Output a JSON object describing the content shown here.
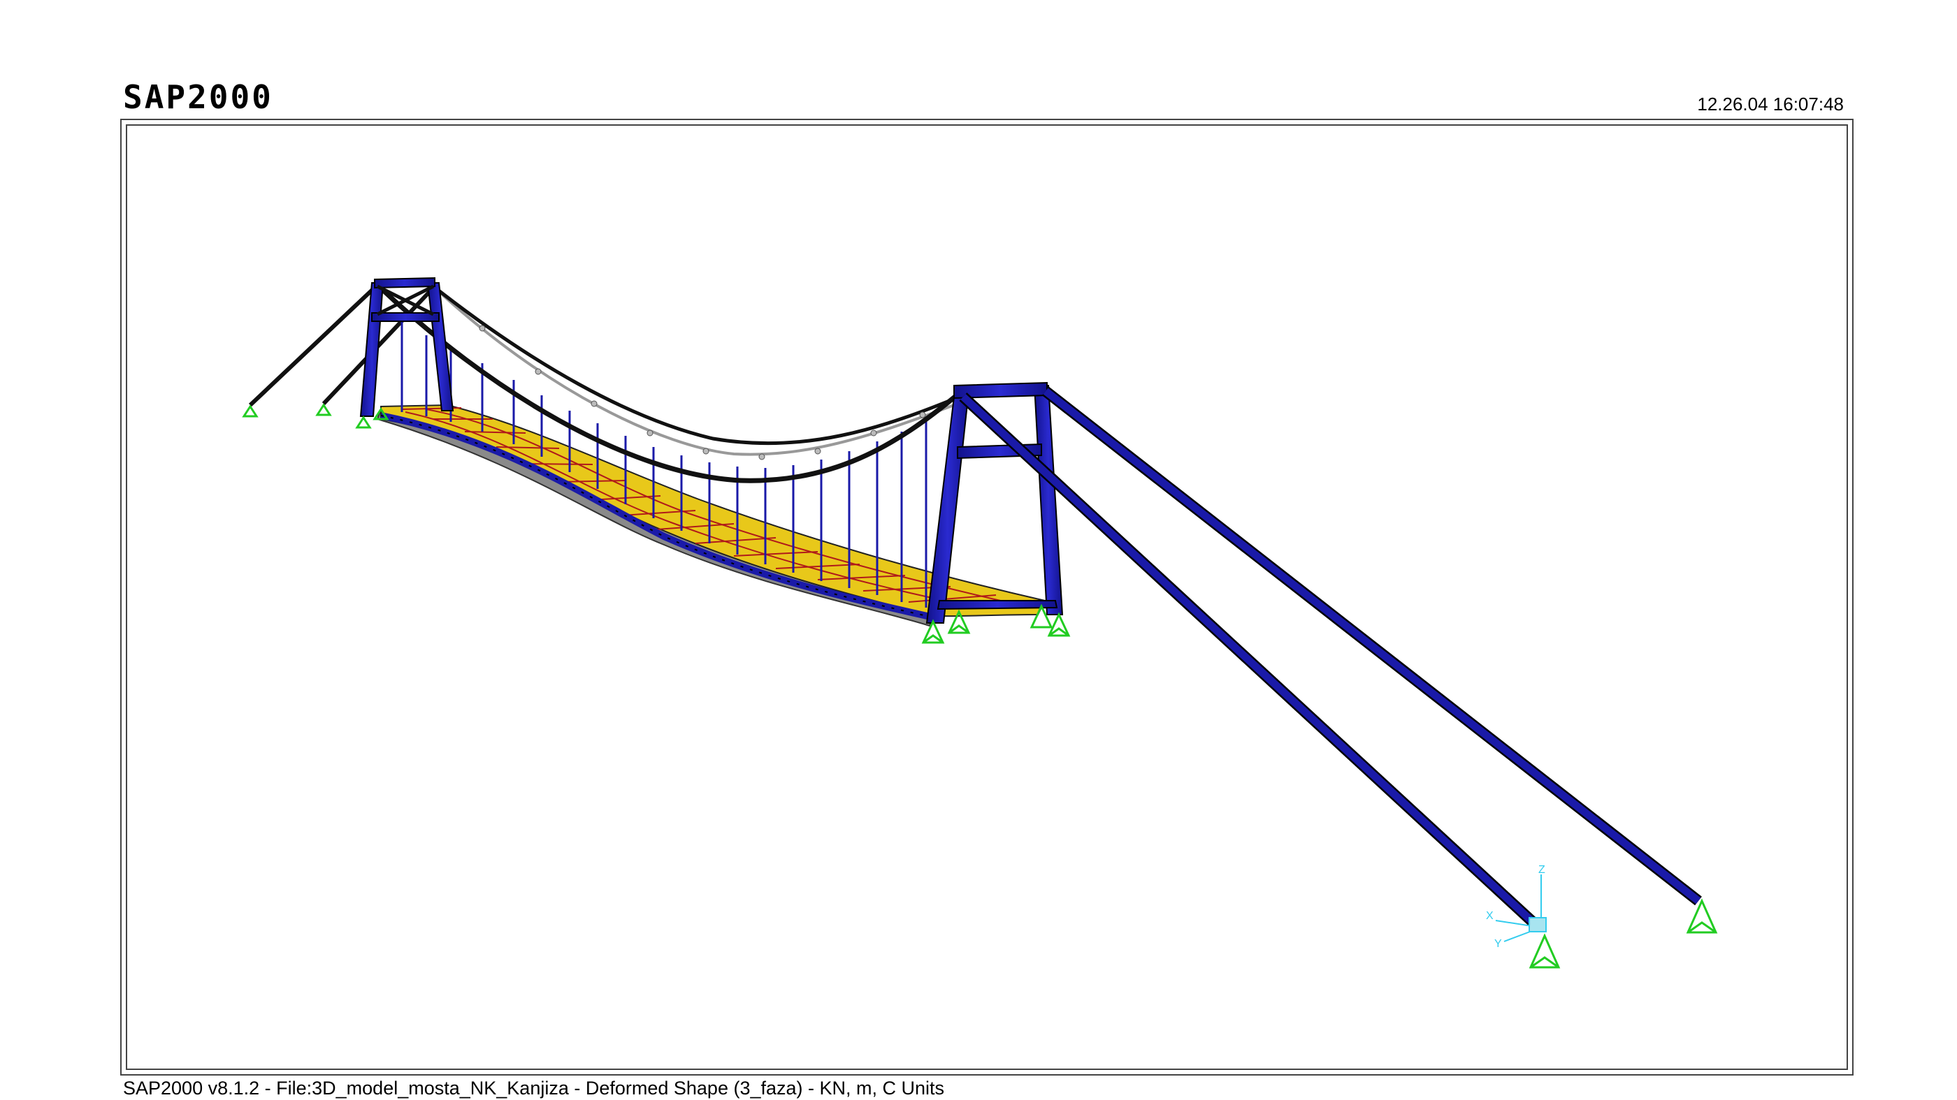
{
  "header": {
    "app_title": "SAP2000",
    "timestamp": "12.26.04 16:07:48"
  },
  "footer": {
    "status_line": "SAP2000 v8.1.2 - File:3D_model_mosta_NK_Kanjiza - Deformed Shape (3_faza) - KN, m, C Units"
  },
  "axes_triad": {
    "labels": [
      "Z",
      "X",
      "Y"
    ],
    "color": "#33ccee"
  },
  "colors": {
    "frame": "#1a1aa8",
    "frame_edge": "#000000",
    "deck_fill": "#e8c81a",
    "deck_mesh": "#b01a1a",
    "cable": "#111111",
    "support": "#22cc22"
  }
}
